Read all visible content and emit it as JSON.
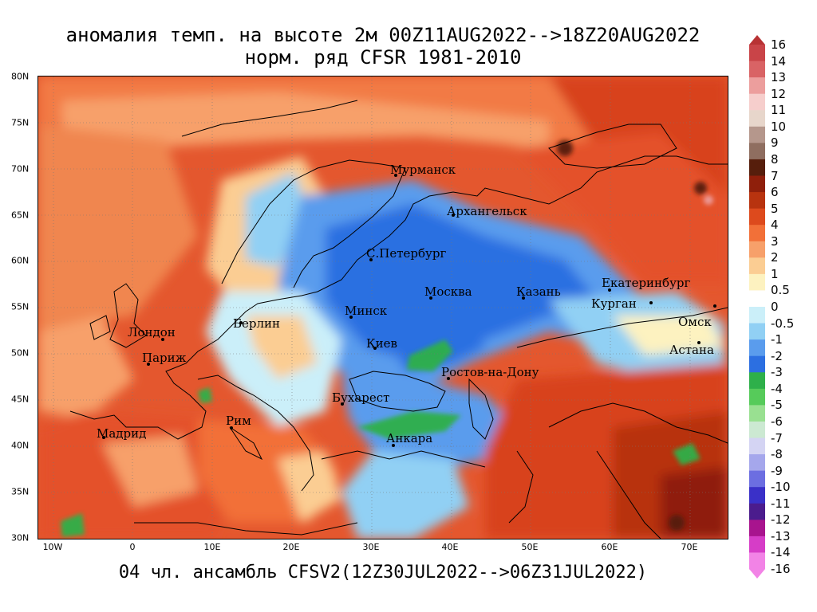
{
  "title_line1": "аномалия темп. на высоте 2м 00Z11AUG2022-->18Z20AUG2022",
  "title_line2": "норм. ряд CFSR 1981-2010",
  "footer": "04 чл. ансамбль CFSV2(12Z30JUL2022-->06Z31JUL2022)",
  "lat_labels": [
    "80N",
    "75N",
    "70N",
    "65N",
    "60N",
    "55N",
    "50N",
    "45N",
    "40N",
    "35N",
    "30N"
  ],
  "lon_labels": [
    "10W",
    "0",
    "10E",
    "20E",
    "30E",
    "40E",
    "50E",
    "60E",
    "70E"
  ],
  "colorbar_labels": [
    "16",
    "14",
    "13",
    "12",
    "11",
    "10",
    "9",
    "8",
    "7",
    "6",
    "5",
    "4",
    "3",
    "2",
    "1",
    "0.5",
    "0",
    "-0.5",
    "-1",
    "-2",
    "-3",
    "-4",
    "-5",
    "-6",
    "-7",
    "-8",
    "-9",
    "-10",
    "-11",
    "-12",
    "-13",
    "-14",
    "-16"
  ],
  "colorbar_colors": [
    "#b83234",
    "#c94448",
    "#d96365",
    "#ec9e9d",
    "#f6cecc",
    "#e7d6cb",
    "#b5978c",
    "#8f6e60",
    "#561e0c",
    "#8f1f0b",
    "#b8330f",
    "#dd4a1d",
    "#f27038",
    "#f7a06a",
    "#fbcd93",
    "#fdf2c0",
    "#ffffff",
    "#cbeff9",
    "#91d0f4",
    "#5a9ced",
    "#2c6fe1",
    "#2eb04a",
    "#56cb5a",
    "#99e091",
    "#cce9d2",
    "#d4d4f3",
    "#a5a7ec",
    "#6c6ee1",
    "#3a30c8",
    "#4b1c8d",
    "#a8148e",
    "#d63dc7",
    "#f283e6"
  ],
  "cities": [
    {
      "name": "Мурманск"
    },
    {
      "name": "Архангельск"
    },
    {
      "name": "С.Петербург"
    },
    {
      "name": "Москва"
    },
    {
      "name": "Казань"
    },
    {
      "name": "Екатеринбург"
    },
    {
      "name": "Курган"
    },
    {
      "name": "Омск"
    },
    {
      "name": "Астана"
    },
    {
      "name": "Минск"
    },
    {
      "name": "Берлин"
    },
    {
      "name": "Лондон"
    },
    {
      "name": "Париж"
    },
    {
      "name": "Киев"
    },
    {
      "name": "Ростов-на-Дону"
    },
    {
      "name": "Бухарест"
    },
    {
      "name": "Рим"
    },
    {
      "name": "Мадрид"
    },
    {
      "name": "Анкара"
    }
  ]
}
